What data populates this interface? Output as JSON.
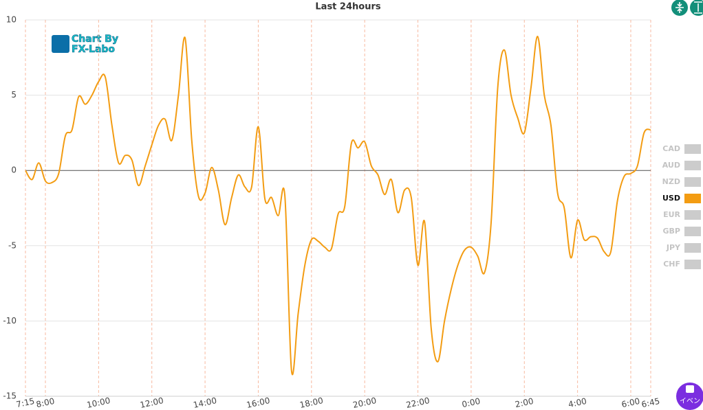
{
  "chart_data": {
    "type": "line",
    "title": "Last 24hours",
    "watermark": [
      "Chart By",
      "FX-Labo"
    ],
    "event_button": "イベン",
    "xlim": [
      "7:15",
      "6:45"
    ],
    "xticks": [
      "7:15",
      "8:00",
      "10:00",
      "12:00",
      "14:00",
      "16:00",
      "18:00",
      "20:00",
      "22:00",
      "0:00",
      "2:00",
      "4:00",
      "6:00",
      "6:45"
    ],
    "ylim": [
      -15,
      10
    ],
    "yticks": [
      -15,
      -10,
      -5,
      0,
      5,
      10
    ],
    "grid": true,
    "x": [
      "7:15",
      "7:30",
      "7:45",
      "8:00",
      "8:15",
      "8:30",
      "8:45",
      "9:00",
      "9:15",
      "9:30",
      "9:45",
      "10:00",
      "10:15",
      "10:30",
      "10:45",
      "11:00",
      "11:15",
      "11:30",
      "11:45",
      "12:00",
      "12:15",
      "12:30",
      "12:45",
      "13:00",
      "13:15",
      "13:30",
      "13:45",
      "14:00",
      "14:15",
      "14:30",
      "14:45",
      "15:00",
      "15:15",
      "15:30",
      "15:45",
      "16:00",
      "16:15",
      "16:30",
      "16:45",
      "17:00",
      "17:15",
      "17:30",
      "17:45",
      "18:00",
      "18:15",
      "18:30",
      "18:45",
      "19:00",
      "19:15",
      "19:30",
      "19:45",
      "20:00",
      "20:15",
      "20:30",
      "20:45",
      "21:00",
      "21:15",
      "21:30",
      "21:45",
      "22:00",
      "22:15",
      "22:30",
      "22:45",
      "23:00",
      "23:15",
      "23:30",
      "23:45",
      "0:00",
      "0:15",
      "0:30",
      "0:45",
      "1:00",
      "1:15",
      "1:30",
      "1:45",
      "2:00",
      "2:15",
      "2:30",
      "2:45",
      "3:00",
      "3:15",
      "3:30",
      "3:45",
      "4:00",
      "4:15",
      "4:30",
      "4:45",
      "5:00",
      "5:15",
      "5:30",
      "5:45",
      "6:00",
      "6:15",
      "6:30",
      "6:45"
    ],
    "series": [
      {
        "name": "CAD",
        "color": "#cccccc",
        "visible": false
      },
      {
        "name": "AUD",
        "color": "#cccccc",
        "visible": false
      },
      {
        "name": "NZD",
        "color": "#cccccc",
        "visible": false
      },
      {
        "name": "USD",
        "color": "#f39c12",
        "visible": true,
        "values": [
          0,
          -0.6,
          0.5,
          -0.7,
          -0.8,
          -0.2,
          2.3,
          2.7,
          4.9,
          4.4,
          5.0,
          5.9,
          6.2,
          3.0,
          0.5,
          1.0,
          0.7,
          -1.0,
          0.3,
          1.7,
          3.0,
          3.4,
          2.0,
          5.0,
          8.8,
          2.0,
          -1.7,
          -1.5,
          0.2,
          -1.3,
          -3.6,
          -1.8,
          -0.3,
          -1.1,
          -1.1,
          2.9,
          -1.9,
          -1.8,
          -3.0,
          -1.7,
          -13.3,
          -9.5,
          -6.3,
          -4.6,
          -4.7,
          -5.1,
          -5.2,
          -2.9,
          -2.4,
          1.8,
          1.5,
          1.9,
          0.3,
          -0.3,
          -1.6,
          -0.6,
          -2.8,
          -1.3,
          -1.8,
          -6.3,
          -3.4,
          -10.5,
          -12.7,
          -10.0,
          -7.9,
          -6.3,
          -5.3,
          -5.1,
          -5.7,
          -6.8,
          -3.5,
          5.5,
          8.0,
          5.0,
          3.5,
          2.5,
          5.5,
          8.9,
          5.0,
          3.0,
          -1.5,
          -2.5,
          -5.8,
          -3.3,
          -4.6,
          -4.4,
          -4.5,
          -5.4,
          -5.4,
          -2.0,
          -0.4,
          -0.2,
          0.3,
          2.5,
          2.7
        ]
      },
      {
        "name": "EUR",
        "color": "#cccccc",
        "visible": false
      },
      {
        "name": "GBP",
        "color": "#cccccc",
        "visible": false
      },
      {
        "name": "JPY",
        "color": "#cccccc",
        "visible": false
      },
      {
        "name": "CHF",
        "color": "#cccccc",
        "visible": false
      }
    ]
  }
}
